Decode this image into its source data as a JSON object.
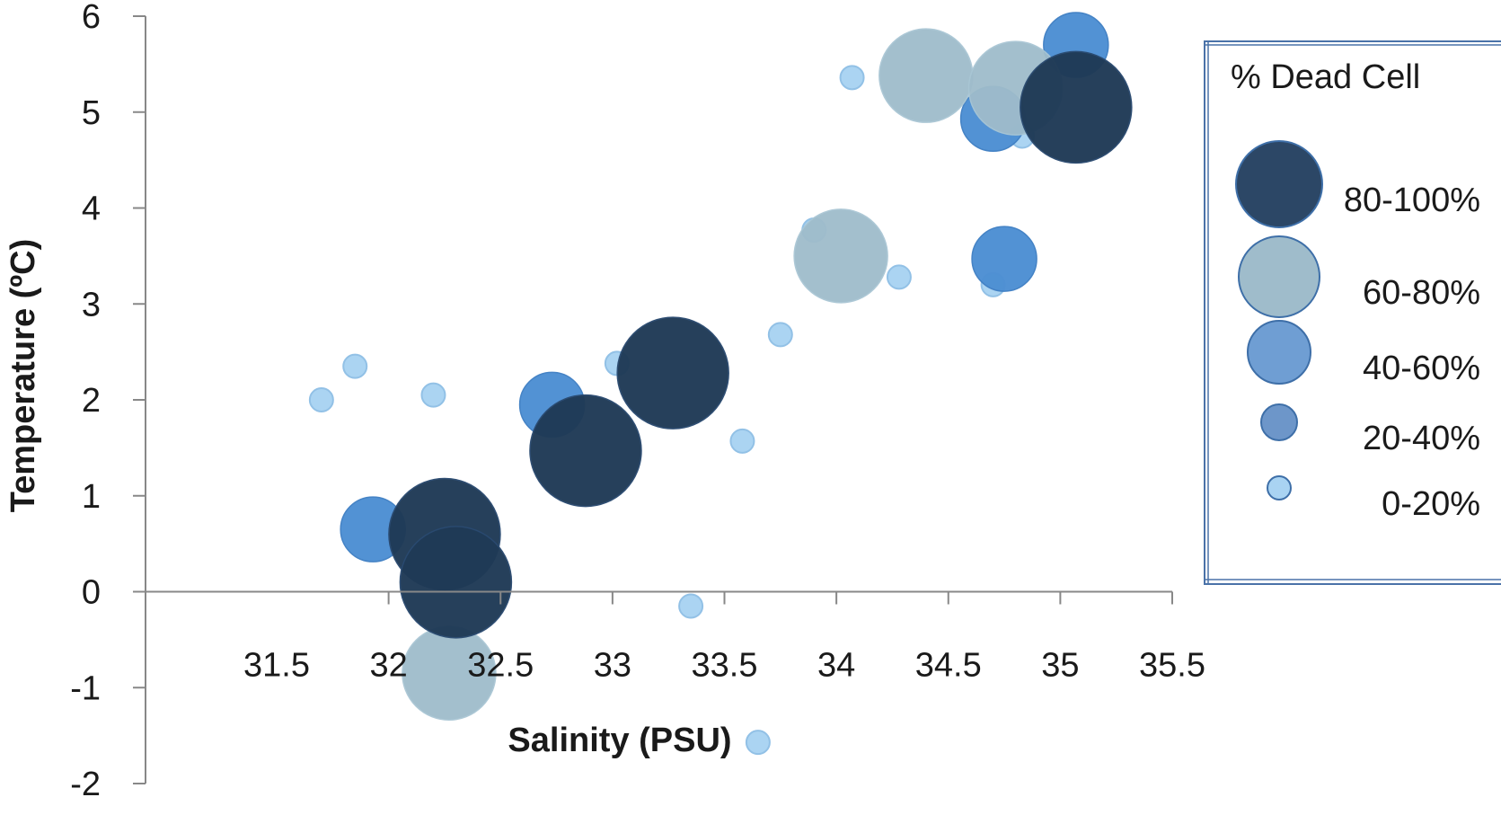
{
  "chart_data": {
    "type": "scatter",
    "subtype": "bubble",
    "title": "",
    "xlabel": "Salinity (PSU)",
    "ylabel": "Temperature (ºC)",
    "xlim": [
      31.5,
      35.5
    ],
    "ylim": [
      -2,
      6
    ],
    "x_ticks": [
      "31.5",
      "32",
      "32.5",
      "33",
      "33.5",
      "34",
      "34.5",
      "35",
      "35.5"
    ],
    "y_ticks": [
      "-2",
      "-1",
      "0",
      "1",
      "2",
      "3",
      "4",
      "5",
      "6"
    ],
    "grid": false,
    "legend": {
      "title": "% Dead Cell",
      "placement": "right",
      "entries": [
        {
          "label": "80-100%",
          "class": "c80"
        },
        {
          "label": "60-80%",
          "class": "c60"
        },
        {
          "label": "40-60%",
          "class": "c40"
        },
        {
          "label": "20-40%",
          "class": "c20"
        },
        {
          "label": "0-20%",
          "class": "c0"
        }
      ]
    },
    "classes": {
      "c80": {
        "fill": "#1f3a56",
        "stroke": "#2a4a70"
      },
      "c60": {
        "fill": "#9fbccb",
        "stroke": "#a9c6d4"
      },
      "c40": {
        "fill": "#4d8fd3",
        "stroke": "#3f7fc4"
      },
      "c20": {
        "fill": "#6d96c9",
        "stroke": "#3e6fa8"
      },
      "c0": {
        "fill": "#a9d3f2",
        "stroke": "#8fbfe6"
      }
    },
    "points": [
      {
        "x": 31.7,
        "y": 2.0,
        "class": "c0"
      },
      {
        "x": 31.85,
        "y": 2.35,
        "class": "c0"
      },
      {
        "x": 32.2,
        "y": 2.05,
        "class": "c0"
      },
      {
        "x": 33.02,
        "y": 2.38,
        "class": "c0"
      },
      {
        "x": 33.35,
        "y": -0.15,
        "class": "c0"
      },
      {
        "x": 33.58,
        "y": 1.57,
        "class": "c0"
      },
      {
        "x": 33.65,
        "y": -1.57,
        "class": "c0"
      },
      {
        "x": 33.75,
        "y": 2.68,
        "class": "c0"
      },
      {
        "x": 33.9,
        "y": 3.77,
        "class": "c0"
      },
      {
        "x": 34.07,
        "y": 5.36,
        "class": "c0"
      },
      {
        "x": 34.28,
        "y": 3.28,
        "class": "c0"
      },
      {
        "x": 34.7,
        "y": 3.2,
        "class": "c0"
      },
      {
        "x": 34.83,
        "y": 4.75,
        "class": "c0"
      },
      {
        "x": 31.93,
        "y": 0.65,
        "class": "c40"
      },
      {
        "x": 32.73,
        "y": 1.95,
        "class": "c40"
      },
      {
        "x": 34.7,
        "y": 4.93,
        "class": "c40"
      },
      {
        "x": 34.75,
        "y": 3.47,
        "class": "c40"
      },
      {
        "x": 35.07,
        "y": 5.7,
        "class": "c40"
      },
      {
        "x": 32.27,
        "y": -0.85,
        "class": "c60"
      },
      {
        "x": 34.02,
        "y": 3.5,
        "class": "c60"
      },
      {
        "x": 34.4,
        "y": 5.38,
        "class": "c60"
      },
      {
        "x": 34.8,
        "y": 5.25,
        "class": "c60"
      },
      {
        "x": 32.25,
        "y": 0.6,
        "class": "c80"
      },
      {
        "x": 32.3,
        "y": 0.1,
        "class": "c80"
      },
      {
        "x": 32.88,
        "y": 1.47,
        "class": "c80"
      },
      {
        "x": 33.27,
        "y": 2.28,
        "class": "c80"
      },
      {
        "x": 35.07,
        "y": 5.05,
        "class": "c80"
      }
    ]
  }
}
